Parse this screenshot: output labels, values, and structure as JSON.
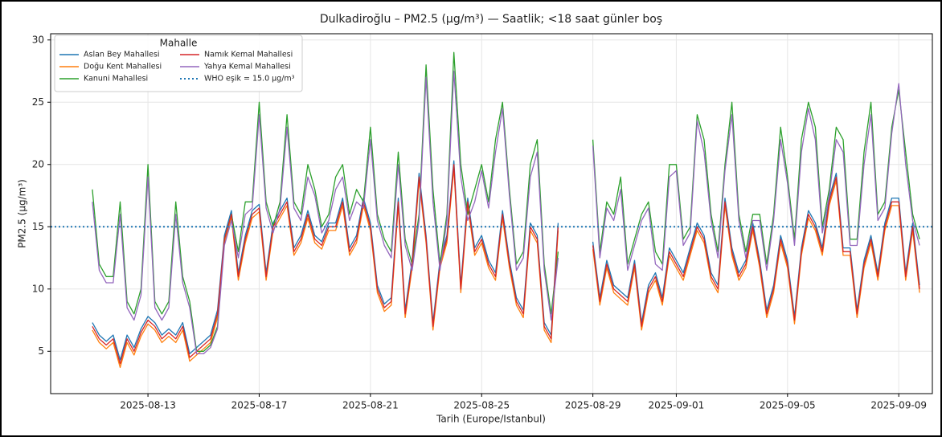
{
  "chart_data": {
    "type": "line",
    "title": "Dulkadiroğlu – PM2.5 (µg/m³) — Saatlik; <18 saat günler boş",
    "xlabel": "Tarih (Europe/Istanbul)",
    "ylabel": "PM2.5 (µg/m³)",
    "legend_title": "Mahalle",
    "legend": "upper left",
    "grid": true,
    "xlim": [
      "2025-08-09 12:00",
      "2025-09-10 05:00"
    ],
    "xticks": [
      "2025-08-13",
      "2025-08-17",
      "2025-08-21",
      "2025-08-25",
      "2025-08-29",
      "2025-09-01",
      "2025-09-05",
      "2025-09-09"
    ],
    "ylim": [
      1.6,
      30.5
    ],
    "yticks": [
      5,
      10,
      15,
      20,
      25,
      30
    ],
    "threshold": {
      "name": "WHO eşik = 15.0 µg/m³",
      "value": 15,
      "color": "#1f77b4"
    },
    "x": [
      "2025-08-11 00:00",
      "2025-08-11 06:00",
      "2025-08-11 12:00",
      "2025-08-11 18:00",
      "2025-08-12 00:00",
      "2025-08-12 06:00",
      "2025-08-12 12:00",
      "2025-08-12 18:00",
      "2025-08-13 00:00",
      "2025-08-13 06:00",
      "2025-08-13 12:00",
      "2025-08-13 18:00",
      "2025-08-14 00:00",
      "2025-08-14 06:00",
      "2025-08-14 12:00",
      "2025-08-14 18:00",
      "2025-08-15 00:00",
      "2025-08-15 06:00",
      "2025-08-15 12:00",
      "2025-08-15 18:00",
      "2025-08-16 00:00",
      "2025-08-16 06:00",
      "2025-08-16 12:00",
      "2025-08-16 18:00",
      "2025-08-17 00:00",
      "2025-08-17 06:00",
      "2025-08-17 12:00",
      "2025-08-17 18:00",
      "2025-08-18 00:00",
      "2025-08-18 06:00",
      "2025-08-18 12:00",
      "2025-08-18 18:00",
      "2025-08-19 00:00",
      "2025-08-19 06:00",
      "2025-08-19 12:00",
      "2025-08-19 18:00",
      "2025-08-20 00:00",
      "2025-08-20 06:00",
      "2025-08-20 12:00",
      "2025-08-20 18:00",
      "2025-08-21 00:00",
      "2025-08-21 06:00",
      "2025-08-21 12:00",
      "2025-08-21 18:00",
      "2025-08-22 00:00",
      "2025-08-22 06:00",
      "2025-08-22 12:00",
      "2025-08-22 18:00",
      "2025-08-23 00:00",
      "2025-08-23 06:00",
      "2025-08-23 12:00",
      "2025-08-23 18:00",
      "2025-08-24 00:00",
      "2025-08-24 06:00",
      "2025-08-24 12:00",
      "2025-08-24 18:00",
      "2025-08-25 00:00",
      "2025-08-25 06:00",
      "2025-08-25 12:00",
      "2025-08-25 18:00",
      "2025-08-26 00:00",
      "2025-08-26 06:00",
      "2025-08-26 12:00",
      "2025-08-26 18:00",
      "2025-08-27 00:00",
      "2025-08-27 06:00",
      "2025-08-27 12:00",
      "2025-08-27 18:00",
      "2025-08-28 00:00",
      "2025-08-28 06:00",
      "2025-08-28 12:00",
      "2025-08-28 18:00",
      "2025-08-29 00:00",
      "2025-08-29 06:00",
      "2025-08-29 12:00",
      "2025-08-29 18:00",
      "2025-08-30 00:00",
      "2025-08-30 06:00",
      "2025-08-30 12:00",
      "2025-08-30 18:00",
      "2025-08-31 00:00",
      "2025-08-31 06:00",
      "2025-08-31 12:00",
      "2025-08-31 18:00",
      "2025-09-01 00:00",
      "2025-09-01 06:00",
      "2025-09-01 12:00",
      "2025-09-01 18:00",
      "2025-09-02 00:00",
      "2025-09-02 06:00",
      "2025-09-02 12:00",
      "2025-09-02 18:00",
      "2025-09-03 00:00",
      "2025-09-03 06:00",
      "2025-09-03 12:00",
      "2025-09-03 18:00",
      "2025-09-04 00:00",
      "2025-09-04 06:00",
      "2025-09-04 12:00",
      "2025-09-04 18:00",
      "2025-09-05 00:00",
      "2025-09-05 06:00",
      "2025-09-05 12:00",
      "2025-09-05 18:00",
      "2025-09-06 00:00",
      "2025-09-06 06:00",
      "2025-09-06 12:00",
      "2025-09-06 18:00",
      "2025-09-07 00:00",
      "2025-09-07 06:00",
      "2025-09-07 12:00",
      "2025-09-07 18:00",
      "2025-09-08 00:00",
      "2025-09-08 06:00",
      "2025-09-08 12:00",
      "2025-09-08 18:00",
      "2025-09-09 00:00",
      "2025-09-09 06:00",
      "2025-09-09 12:00",
      "2025-09-09 18:00"
    ],
    "series": [
      {
        "name": "Aslan Bey Mahallesi",
        "color": "#1f77b4",
        "values": [
          7.3,
          6.3,
          5.8,
          6.3,
          4.3,
          6.3,
          5.3,
          6.8,
          7.8,
          7.3,
          6.3,
          6.8,
          6.3,
          7.3,
          4.8,
          5.3,
          5.8,
          6.3,
          8.3,
          14.3,
          16.3,
          11.3,
          14.3,
          16.3,
          16.8,
          11.3,
          15.3,
          16.3,
          17.3,
          13.3,
          14.3,
          16.3,
          14.3,
          13.8,
          15.3,
          15.3,
          17.3,
          13.3,
          14.3,
          17.3,
          15.3,
          10.3,
          8.8,
          9.3,
          17.3,
          8.3,
          12.3,
          19.3,
          14.3,
          7.3,
          12.3,
          14.3,
          20.3,
          10.3,
          17.3,
          13.3,
          14.3,
          12.3,
          11.3,
          16.3,
          12.3,
          9.3,
          8.3,
          15.3,
          14.3,
          7.3,
          6.3,
          15.3,
          null,
          null,
          null,
          null,
          13.8,
          9.3,
          12.3,
          10.3,
          9.8,
          9.3,
          12.3,
          7.3,
          10.3,
          11.3,
          9.3,
          13.3,
          12.3,
          11.3,
          13.3,
          15.3,
          14.3,
          11.3,
          10.3,
          17.3,
          13.3,
          11.3,
          12.3,
          15.3,
          12.3,
          8.3,
          10.3,
          14.3,
          12.3,
          7.8,
          13.3,
          16.3,
          15.3,
          13.3,
          17.3,
          19.3,
          13.3,
          13.3,
          8.3,
          12.3,
          14.3,
          11.3,
          15.3,
          17.3,
          17.3,
          11.3,
          15.3,
          10.3
        ]
      },
      {
        "name": "Doğu Kent Mahallesi",
        "color": "#ff7f0e",
        "values": [
          6.7,
          5.7,
          5.2,
          5.7,
          3.7,
          5.7,
          4.7,
          6.2,
          7.2,
          6.7,
          5.7,
          6.2,
          5.7,
          6.7,
          4.2,
          4.7,
          5.2,
          5.7,
          7.7,
          13.7,
          15.7,
          10.7,
          13.7,
          15.7,
          16.2,
          10.7,
          14.7,
          15.7,
          16.7,
          12.7,
          13.7,
          15.7,
          13.7,
          13.2,
          14.7,
          14.7,
          16.7,
          12.7,
          13.7,
          16.7,
          14.7,
          9.7,
          8.2,
          8.7,
          16.7,
          7.7,
          11.7,
          18.7,
          13.7,
          6.7,
          11.7,
          13.7,
          19.7,
          9.7,
          16.7,
          12.7,
          13.7,
          11.7,
          10.7,
          15.7,
          11.7,
          8.7,
          7.7,
          14.7,
          13.7,
          6.7,
          5.7,
          14.7,
          null,
          null,
          null,
          null,
          13.2,
          8.7,
          11.7,
          9.7,
          9.2,
          8.7,
          11.7,
          6.7,
          9.7,
          10.7,
          8.7,
          12.7,
          11.7,
          10.7,
          12.7,
          14.7,
          13.7,
          10.7,
          9.7,
          16.7,
          12.7,
          10.7,
          11.7,
          14.7,
          11.7,
          7.7,
          9.7,
          13.7,
          11.7,
          7.2,
          12.7,
          15.7,
          14.7,
          12.7,
          16.7,
          18.7,
          12.7,
          12.7,
          7.7,
          11.7,
          13.7,
          10.7,
          14.7,
          16.7,
          16.7,
          10.7,
          14.7,
          9.7
        ]
      },
      {
        "name": "Kanuni Mahallesi",
        "color": "#2ca02c",
        "values": [
          18,
          12,
          11,
          11,
          17,
          9,
          8,
          10,
          20,
          9,
          8,
          9,
          17,
          11,
          9,
          5,
          5,
          5.5,
          7,
          14,
          16,
          13,
          17,
          17,
          25,
          17,
          15,
          17,
          24,
          17,
          16,
          20,
          18,
          15,
          16,
          19,
          20,
          16,
          18,
          17,
          23,
          16,
          14,
          13,
          21,
          14,
          12,
          16,
          28,
          18,
          12,
          16,
          29,
          20,
          16,
          18,
          20,
          17,
          22,
          25,
          18,
          12,
          13,
          20,
          22,
          12,
          8,
          13,
          null,
          null,
          null,
          null,
          22,
          13,
          17,
          16,
          19,
          12,
          14,
          16,
          17,
          13,
          12,
          20,
          20,
          14,
          15,
          24,
          22,
          16,
          13,
          20,
          25,
          16,
          13,
          16,
          16,
          12,
          16,
          23,
          19,
          14,
          22,
          25,
          23,
          15,
          18,
          23,
          22,
          14,
          14,
          21,
          25,
          16,
          17,
          23,
          26,
          21,
          16,
          14
        ]
      },
      {
        "name": "Namık Kemal Mahallesi",
        "color": "#d62728",
        "values": [
          7,
          6,
          5.5,
          6,
          4,
          6,
          5,
          6.5,
          7.5,
          7,
          6,
          6.5,
          6,
          7,
          4.5,
          5,
          5.5,
          6,
          8,
          14,
          16,
          11,
          14,
          16,
          16.5,
          11,
          15,
          16,
          17,
          13,
          14,
          16,
          14,
          13.5,
          15,
          15,
          17,
          13,
          14,
          17,
          15,
          10,
          8.5,
          9,
          17,
          8,
          12,
          19,
          14,
          7,
          12,
          14,
          20,
          10,
          17,
          13,
          14,
          12,
          11,
          16,
          12,
          9,
          8,
          15,
          14,
          7,
          6,
          15,
          null,
          null,
          null,
          null,
          13.5,
          9,
          12,
          10,
          9.5,
          9,
          12,
          7,
          10,
          11,
          9,
          13,
          12,
          11,
          13,
          15,
          14,
          11,
          10,
          17,
          13,
          11,
          12,
          15,
          12,
          8,
          10,
          14,
          12,
          7.5,
          13,
          16,
          15,
          13,
          17,
          19,
          13,
          13,
          8,
          12,
          14,
          11,
          15,
          17,
          17,
          11,
          15,
          10
        ]
      },
      {
        "name": "Yahya Kemal Mahallesi",
        "color": "#9467bd",
        "values": [
          17,
          11.5,
          10.5,
          10.5,
          16,
          8.5,
          7.5,
          9.5,
          19,
          8.5,
          7.5,
          8.5,
          16,
          10.5,
          8.5,
          4.8,
          4.8,
          5.3,
          6.8,
          13.5,
          15.5,
          12.5,
          16,
          16.5,
          24,
          16.5,
          14.5,
          16.5,
          23,
          16.5,
          15.5,
          19,
          17.5,
          14.5,
          15.5,
          18,
          19,
          15.5,
          17,
          16.5,
          22,
          15.5,
          13.5,
          12.5,
          20,
          13.5,
          11.5,
          15.5,
          27,
          17,
          11.5,
          15.5,
          27.5,
          19,
          15.5,
          17,
          19.5,
          16.5,
          21,
          24.5,
          17.5,
          11.5,
          12.5,
          19,
          21,
          11.5,
          7.5,
          12.5,
          null,
          null,
          null,
          null,
          21.5,
          12.5,
          16.5,
          15.5,
          18,
          11.5,
          13.5,
          15.5,
          16.5,
          12,
          11.5,
          19,
          19.5,
          13.5,
          14.5,
          23.5,
          21,
          15.5,
          12.5,
          19.5,
          24,
          15.5,
          12.5,
          15.5,
          15.5,
          11.5,
          15.5,
          22,
          18.5,
          13.5,
          21,
          24.5,
          22,
          14.5,
          17.5,
          22,
          21,
          13.5,
          13.5,
          20,
          24,
          15.5,
          16.5,
          22.5,
          26.5,
          20,
          15.5,
          13.5
        ]
      }
    ]
  }
}
